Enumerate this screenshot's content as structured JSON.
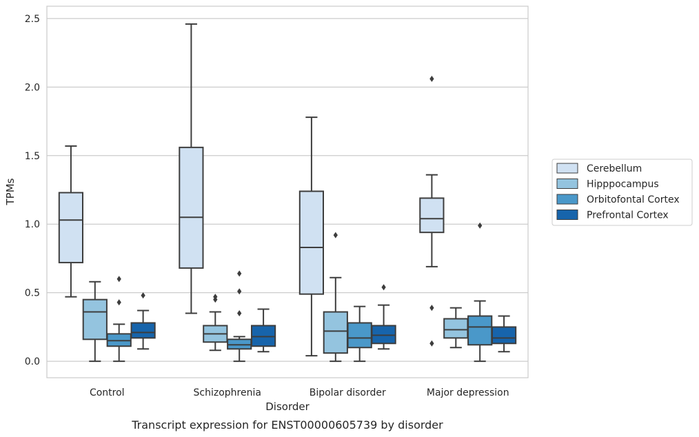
{
  "chart_data": {
    "type": "box",
    "xlabel": "Disorder",
    "ylabel": "TPMs",
    "caption": "Transcript expression for ENST00000605739 by disorder",
    "ylim": [
      -0.12,
      2.59
    ],
    "yticks": [
      "0.0",
      "0.5",
      "1.0",
      "1.5",
      "2.0",
      "2.5"
    ],
    "ytick_values": [
      0.0,
      0.5,
      1.0,
      1.5,
      2.0,
      2.5
    ],
    "grid": true,
    "legend_position": "right",
    "categories": [
      "Control",
      "Schizophrenia",
      "Bipolar disorder",
      "Major depression"
    ],
    "series": [
      {
        "name": "Cerebellum",
        "color": "#d0e1f2",
        "boxes": [
          {
            "min": 0.47,
            "q1": 0.72,
            "median": 1.03,
            "q3": 1.23,
            "max": 1.57,
            "outliers": []
          },
          {
            "min": 0.35,
            "q1": 0.68,
            "median": 1.05,
            "q3": 1.56,
            "max": 2.46,
            "outliers": []
          },
          {
            "min": 0.04,
            "q1": 0.49,
            "median": 0.83,
            "q3": 1.24,
            "max": 1.78,
            "outliers": []
          },
          {
            "min": 0.69,
            "q1": 0.94,
            "median": 1.04,
            "q3": 1.19,
            "max": 1.36,
            "outliers": [
              2.06,
              0.39,
              0.13
            ]
          }
        ]
      },
      {
        "name": "Hipppocampus",
        "color": "#94c4df",
        "boxes": [
          {
            "min": 0.0,
            "q1": 0.16,
            "median": 0.36,
            "q3": 0.45,
            "max": 0.58,
            "outliers": []
          },
          {
            "min": 0.08,
            "q1": 0.14,
            "median": 0.2,
            "q3": 0.26,
            "max": 0.36,
            "outliers": [
              0.47,
              0.45
            ]
          },
          {
            "min": 0.0,
            "q1": 0.06,
            "median": 0.22,
            "q3": 0.36,
            "max": 0.61,
            "outliers": [
              0.92
            ]
          },
          {
            "min": 0.1,
            "q1": 0.17,
            "median": 0.23,
            "q3": 0.31,
            "max": 0.39,
            "outliers": []
          }
        ]
      },
      {
        "name": "Orbitofontal Cortex",
        "color": "#4a98c9",
        "boxes": [
          {
            "min": 0.0,
            "q1": 0.11,
            "median": 0.15,
            "q3": 0.2,
            "max": 0.27,
            "outliers": [
              0.6,
              0.43
            ]
          },
          {
            "min": 0.0,
            "q1": 0.09,
            "median": 0.12,
            "q3": 0.16,
            "max": 0.18,
            "outliers": [
              0.64,
              0.51,
              0.35
            ]
          },
          {
            "min": 0.0,
            "q1": 0.1,
            "median": 0.17,
            "q3": 0.28,
            "max": 0.4,
            "outliers": []
          },
          {
            "min": 0.0,
            "q1": 0.12,
            "median": 0.25,
            "q3": 0.33,
            "max": 0.44,
            "outliers": [
              0.99
            ]
          }
        ]
      },
      {
        "name": "Prefrontal Cortex",
        "color": "#1764ab",
        "boxes": [
          {
            "min": 0.09,
            "q1": 0.17,
            "median": 0.21,
            "q3": 0.28,
            "max": 0.37,
            "outliers": [
              0.48
            ]
          },
          {
            "min": 0.07,
            "q1": 0.11,
            "median": 0.18,
            "q3": 0.26,
            "max": 0.38,
            "outliers": []
          },
          {
            "min": 0.09,
            "q1": 0.13,
            "median": 0.19,
            "q3": 0.26,
            "max": 0.41,
            "outliers": [
              0.54
            ]
          },
          {
            "min": 0.07,
            "q1": 0.13,
            "median": 0.17,
            "q3": 0.25,
            "max": 0.33,
            "outliers": []
          }
        ]
      }
    ]
  }
}
